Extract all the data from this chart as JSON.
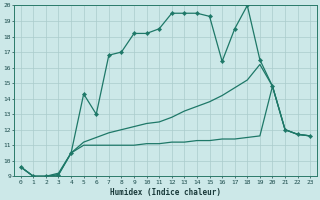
{
  "xlabel": "Humidex (Indice chaleur)",
  "xlim": [
    -0.5,
    23.5
  ],
  "ylim": [
    9,
    20
  ],
  "yticks": [
    9,
    10,
    11,
    12,
    13,
    14,
    15,
    16,
    17,
    18,
    19,
    20
  ],
  "xticks": [
    0,
    1,
    2,
    3,
    4,
    5,
    6,
    7,
    8,
    9,
    10,
    11,
    12,
    13,
    14,
    15,
    16,
    17,
    18,
    19,
    20,
    21,
    22,
    23
  ],
  "bg_color": "#cce8e8",
  "line_color": "#1e7868",
  "grid_color": "#aacccc",
  "line1_x": [
    0,
    1,
    2,
    3,
    4,
    5,
    6,
    7,
    8,
    9,
    10,
    11,
    12,
    13,
    14,
    15,
    16,
    17,
    18,
    19,
    20,
    21,
    22,
    23
  ],
  "line1_y": [
    9.6,
    9.0,
    9.0,
    9.1,
    10.5,
    14.3,
    13.0,
    16.8,
    17.0,
    18.2,
    18.2,
    18.5,
    19.5,
    19.5,
    19.5,
    19.3,
    16.4,
    18.5,
    20.0,
    16.5,
    14.8,
    12.0,
    11.7,
    11.6
  ],
  "line2_x": [
    0,
    1,
    2,
    3,
    4,
    5,
    6,
    7,
    8,
    9,
    10,
    11,
    12,
    13,
    14,
    15,
    16,
    17,
    18,
    19,
    20,
    21,
    22,
    23
  ],
  "line2_y": [
    9.6,
    9.0,
    9.0,
    9.1,
    10.5,
    11.0,
    11.0,
    11.0,
    11.0,
    11.0,
    11.1,
    11.1,
    11.2,
    11.2,
    11.3,
    11.3,
    11.4,
    11.4,
    11.5,
    11.6,
    14.8,
    12.0,
    11.7,
    11.6
  ],
  "line3_x": [
    0,
    1,
    2,
    3,
    4,
    5,
    6,
    7,
    8,
    9,
    10,
    11,
    12,
    13,
    14,
    15,
    16,
    17,
    18,
    19,
    20,
    21,
    22,
    23
  ],
  "line3_y": [
    9.6,
    9.0,
    9.0,
    9.2,
    10.5,
    11.2,
    11.5,
    11.8,
    12.0,
    12.2,
    12.4,
    12.5,
    12.8,
    13.2,
    13.5,
    13.8,
    14.2,
    14.7,
    15.2,
    16.2,
    14.8,
    12.0,
    11.7,
    11.6
  ]
}
